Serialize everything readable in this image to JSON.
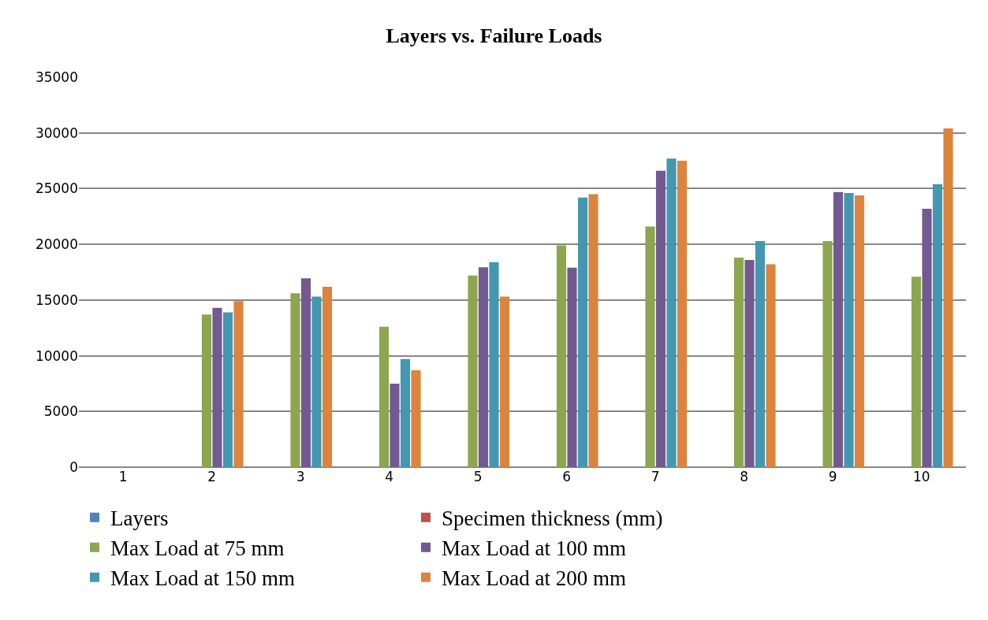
{
  "chart_data": {
    "type": "bar",
    "title": "Layers vs. Failure Loads",
    "categories": [
      "1",
      "2",
      "3",
      "4",
      "5",
      "6",
      "7",
      "8",
      "9",
      "10"
    ],
    "series": [
      {
        "name": "Layers",
        "color": "#4f81bd",
        "values": [
          null,
          null,
          null,
          null,
          null,
          null,
          null,
          null,
          null,
          null
        ]
      },
      {
        "name": "Specimen thickness (mm)",
        "color": "#c0504d",
        "values": [
          null,
          null,
          null,
          null,
          null,
          null,
          null,
          null,
          null,
          null
        ]
      },
      {
        "name": "Max Load at 75 mm",
        "color": "#8ba64e",
        "values": [
          null,
          13700,
          15600,
          12600,
          17200,
          19900,
          21600,
          18800,
          20300,
          17100
        ]
      },
      {
        "name": "Max Load at 100 mm",
        "color": "#72598f",
        "values": [
          null,
          14300,
          16950,
          7500,
          17950,
          17900,
          26600,
          18600,
          24700,
          23200
        ]
      },
      {
        "name": "Max Load at 150 mm",
        "color": "#4397b0",
        "values": [
          null,
          13900,
          15300,
          9700,
          18400,
          24200,
          27700,
          20300,
          24600,
          25400
        ]
      },
      {
        "name": "Max Load at 200 mm",
        "color": "#dc843e",
        "values": [
          null,
          14900,
          16200,
          8700,
          15300,
          24500,
          27500,
          18200,
          24400,
          30400
        ]
      }
    ],
    "ylim": [
      0,
      35000
    ],
    "yticks": [
      0,
      5000,
      10000,
      15000,
      20000,
      25000,
      30000,
      35000
    ],
    "grid": "y",
    "legend": "bottom"
  }
}
